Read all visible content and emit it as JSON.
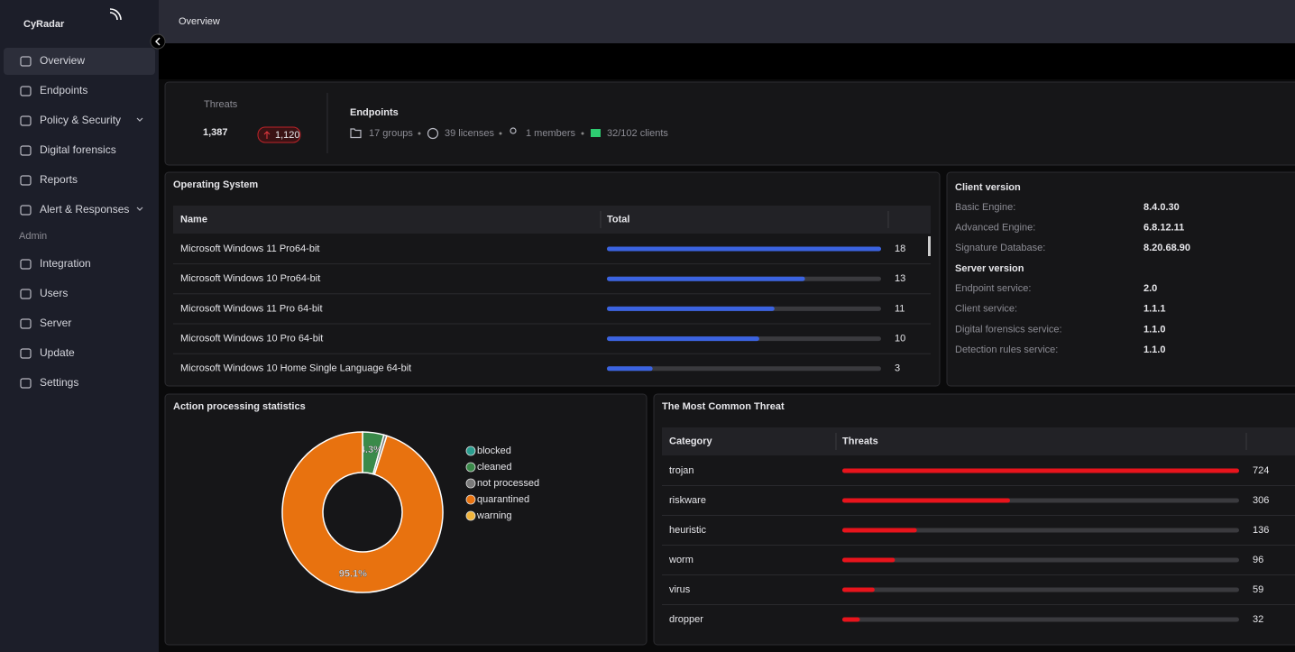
{
  "sidebar": {
    "brand": "CyRadar",
    "main_items": [
      "Overview",
      "Endpoints",
      "Policy & Security",
      "Digital forensics",
      "Reports",
      "Alert & Responses"
    ],
    "section": "Admin",
    "admin_items": [
      "Integration",
      "Users",
      "Server",
      "Update",
      "Settings"
    ]
  },
  "header": {
    "title": "Overview"
  },
  "summary": {
    "threats_label": "Threats",
    "threats": "1,387",
    "threats_change": "1,120",
    "endpoints_title": "Endpoints",
    "endpoint_stats": [
      "17 groups",
      "39 licenses",
      "1 members",
      "32/102 clients"
    ]
  },
  "os_table": {
    "title": "Operating System",
    "columns": [
      "Name",
      "Total"
    ],
    "bar_color": "#3b63e0",
    "rows": [
      {
        "name": "Microsoft Windows 11 Pro64-bit",
        "total": 18
      },
      {
        "name": "Microsoft Windows 10 Pro64-bit",
        "total": 13
      },
      {
        "name": "Microsoft Windows 11 Pro 64-bit",
        "total": 11
      },
      {
        "name": "Microsoft Windows 10 Pro 64-bit",
        "total": 10
      },
      {
        "name": "Microsoft Windows 10 Home Single Language 64-bit",
        "total": 3
      }
    ]
  },
  "versions": {
    "client_title": "Client version",
    "client_rows": [
      [
        "Basic Engine:",
        "8.4.0.30"
      ],
      [
        "Advanced Engine:",
        "6.8.12.11"
      ],
      [
        "Signature Database:",
        "8.20.68.90"
      ]
    ],
    "server_title": "Server version",
    "server_rows": [
      [
        "Endpoint service:",
        "2.0"
      ],
      [
        "Client service:",
        "1.1.1"
      ],
      [
        "Digital forensics service:",
        "1.1.0"
      ],
      [
        "Detection rules service:",
        "1.1.0"
      ]
    ]
  },
  "chart_data": {
    "type": "pie",
    "title": "Action processing statistics",
    "categories": [
      "blocked",
      "cleaned",
      "not processed",
      "quarantined",
      "warning"
    ],
    "values": [
      0,
      4.3,
      0.6,
      95.1,
      0
    ],
    "value_labels": [
      null,
      "4.3%",
      null,
      "95.1%",
      null
    ],
    "colors": [
      "#2a9d8f",
      "#3a8a4a",
      "#7a7a7a",
      "#e8720f",
      "#f0b43c"
    ],
    "donut": true
  },
  "threat_table": {
    "title": "The Most Common Threat",
    "columns": [
      "Category",
      "Threats"
    ],
    "bar_color": "#e8141c",
    "rows": [
      {
        "name": "trojan",
        "total": 724
      },
      {
        "name": "riskware",
        "total": 306
      },
      {
        "name": "heuristic",
        "total": 136
      },
      {
        "name": "worm",
        "total": 96
      },
      {
        "name": "virus",
        "total": 59
      },
      {
        "name": "dropper",
        "total": 32
      }
    ]
  }
}
